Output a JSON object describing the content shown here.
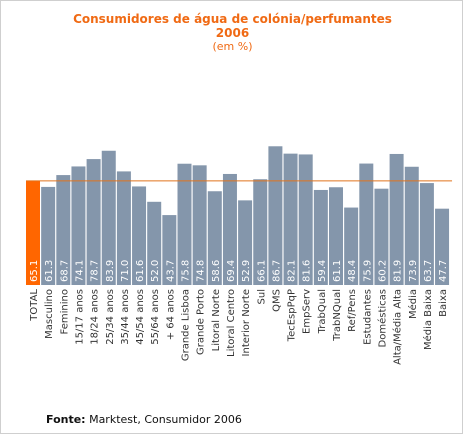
{
  "header": {
    "title": "Consumidores de água de colónia/perfumantes",
    "year": "2006",
    "unit": "(em %)"
  },
  "footer": {
    "source_label": "Fonte:",
    "source_text": "Marktest, Consumidor 2006"
  },
  "colors": {
    "bar": "#8496ab",
    "highlight_bar": "#ff6600",
    "reference_line": "#e0731c",
    "title": "#f06a14",
    "value_text": "#ffffff",
    "axis_text": "#333333"
  },
  "chart_data": {
    "type": "bar",
    "title": "Consumidores de água de colónia/perfumantes",
    "subtitle": "2006",
    "ylabel": "(em %)",
    "xlabel": "",
    "ylim": [
      0,
      100
    ],
    "grid": false,
    "highlight_category": "TOTAL",
    "reference_line_value": 65.1,
    "categories": [
      "TOTAL",
      "Masculino",
      "Feminino",
      "15/17 anos",
      "18/24 anos",
      "25/34 anos",
      "35/44 anos",
      "45/54 anos",
      "55/64 anos",
      "+ 64 anos",
      "Grande Lisboa",
      "Grande Porto",
      "Litoral Norte",
      "Litoral Centro",
      "Interior Norte",
      "Sul",
      "QMS",
      "TecEspPqP",
      "EmpServ",
      "TrabQual",
      "TrabNQual",
      "Ref/Pens",
      "Estudantes",
      "Domésticas",
      "Alta/Média Alta",
      "Média",
      "Média Baixa",
      "Baixa"
    ],
    "values": [
      65.1,
      61.3,
      68.7,
      74.1,
      78.7,
      83.9,
      71.0,
      61.6,
      52.0,
      43.7,
      75.8,
      74.8,
      58.6,
      69.4,
      52.9,
      66.1,
      86.7,
      82.1,
      81.6,
      59.4,
      61.1,
      48.4,
      75.9,
      60.2,
      81.9,
      73.9,
      63.7,
      47.7
    ],
    "value_labels": [
      "65.1",
      "61.3",
      "68.7",
      "74.1",
      "78.7",
      "83.9",
      "71.0",
      "61.6",
      "52.0",
      "43.7",
      "75.8",
      "74.8",
      "58.6",
      "69.4",
      "52.9",
      "66.1",
      "86.7",
      "82.1",
      "81.6",
      "59.4",
      "61.1",
      "48.4",
      "75.9",
      "60.2",
      "81.9",
      "73.9",
      "63.7",
      "47.7"
    ]
  }
}
